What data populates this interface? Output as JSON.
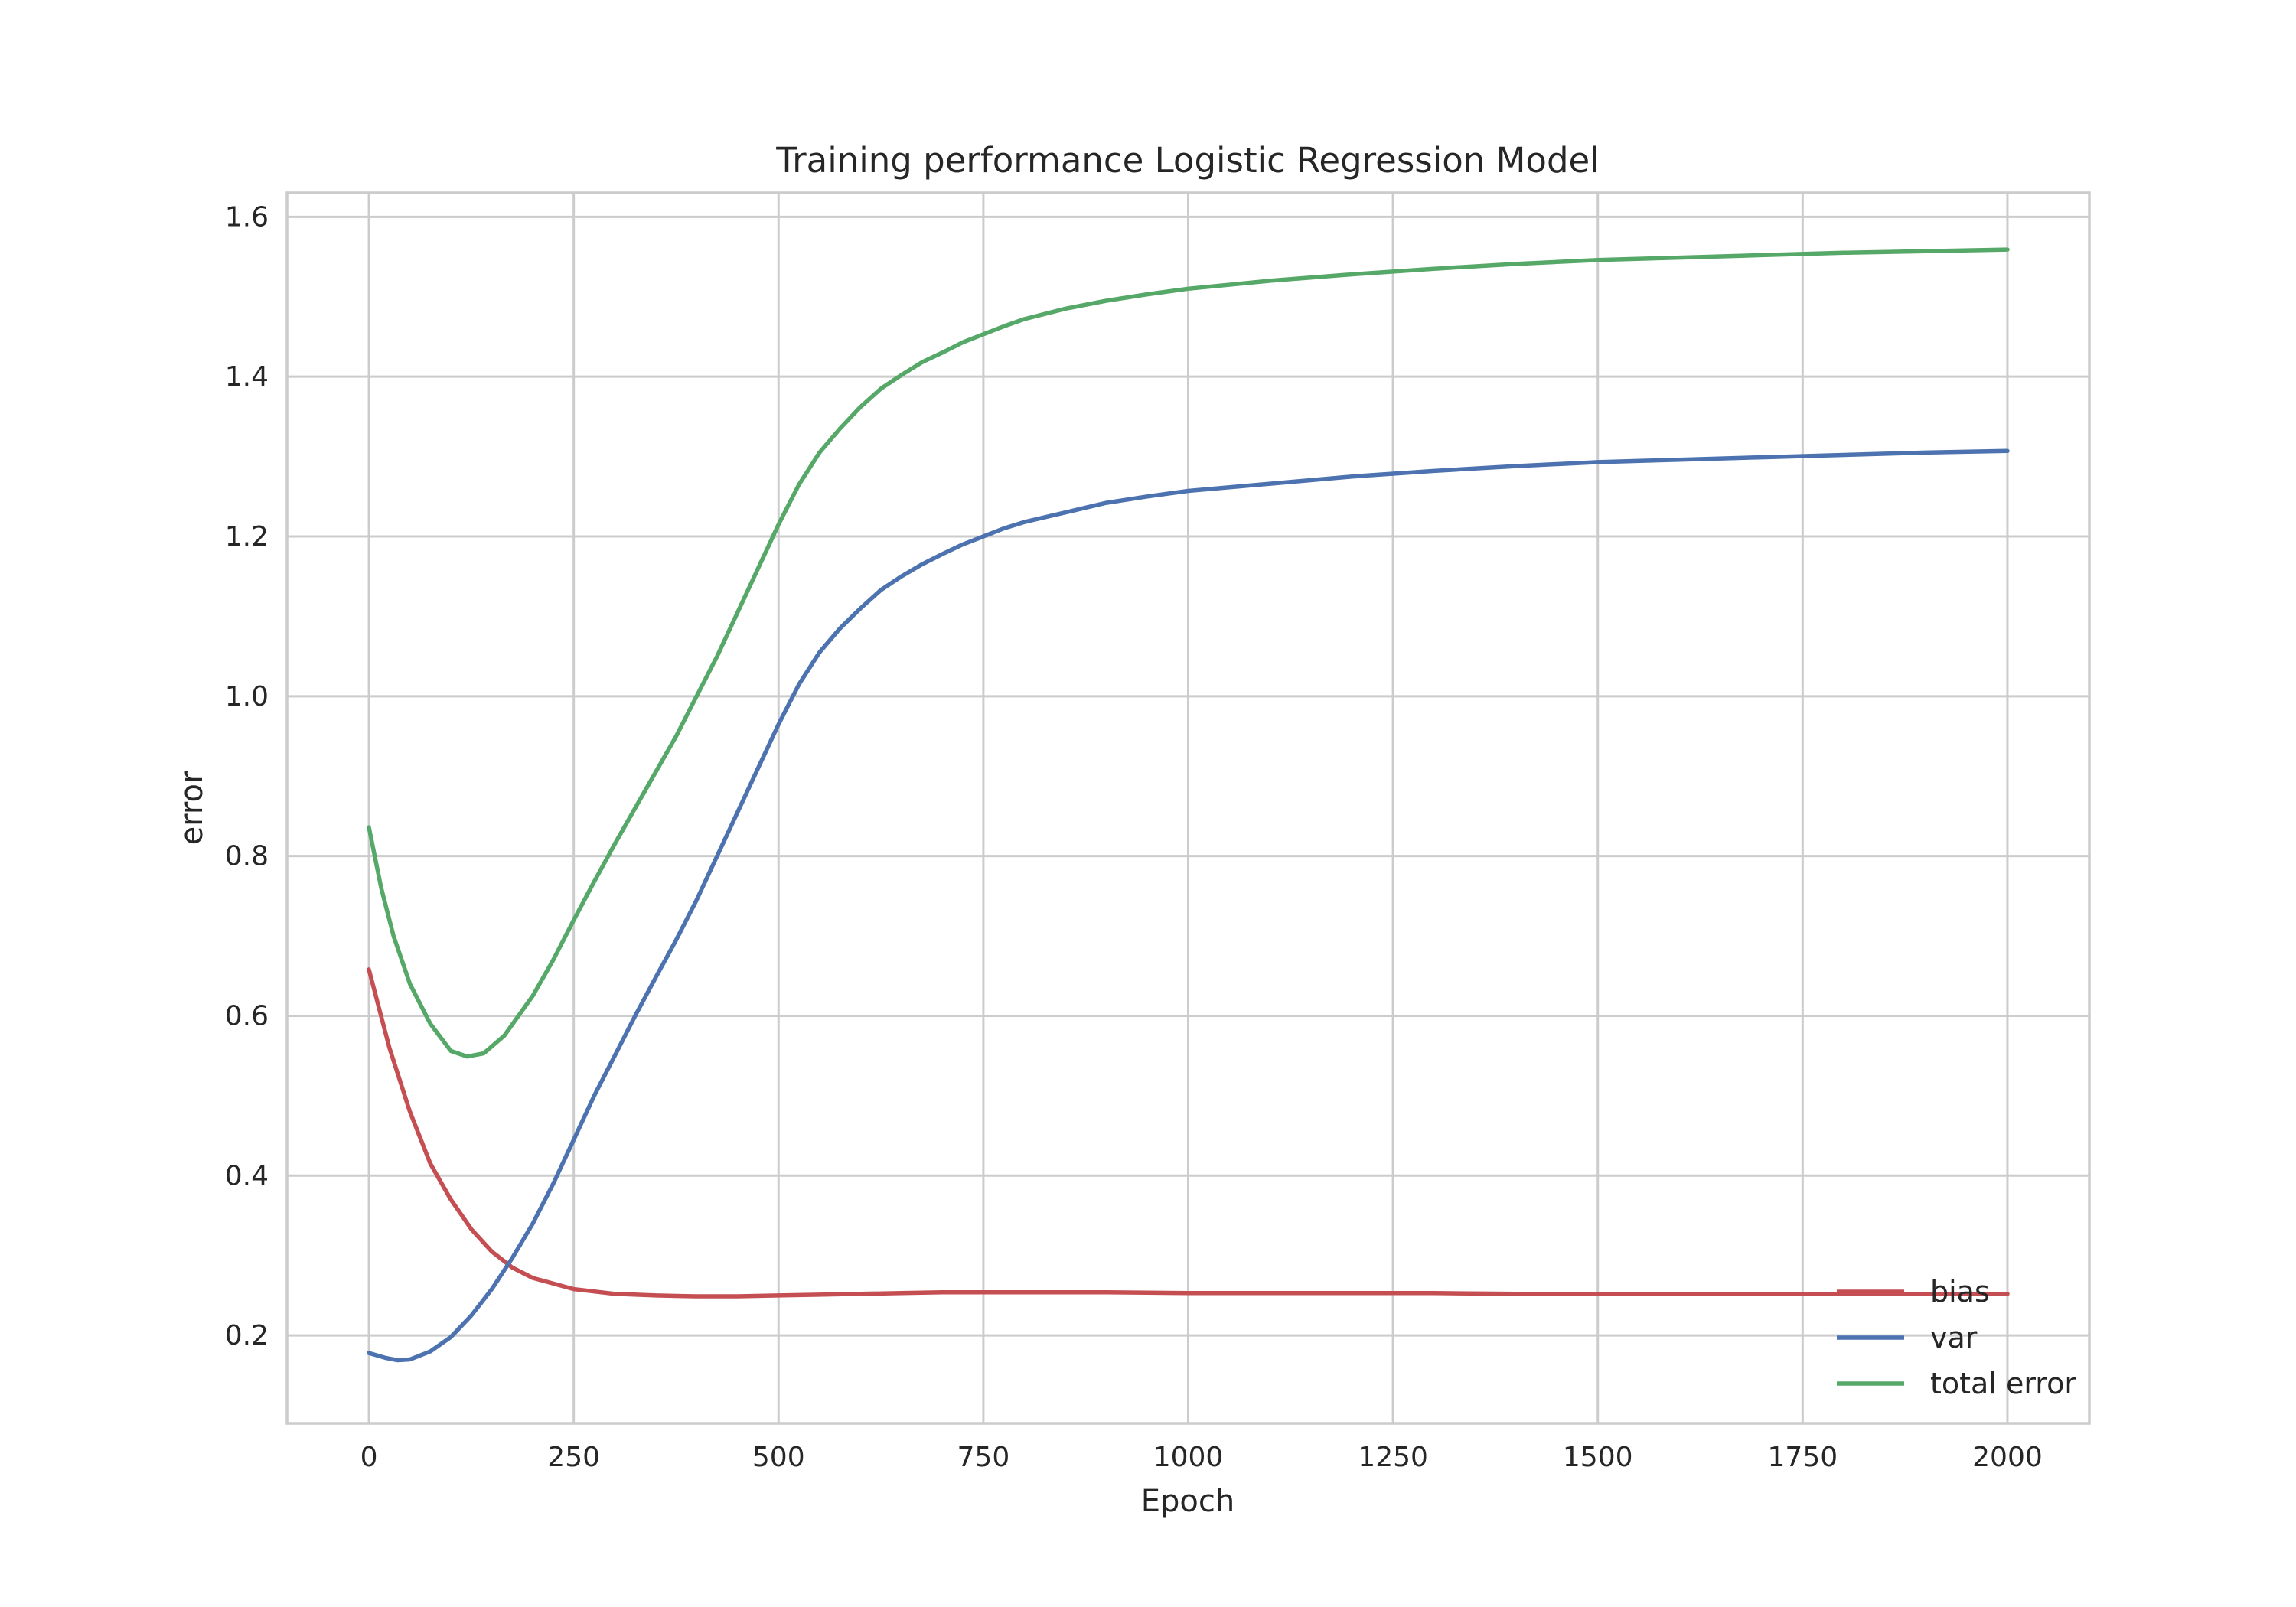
{
  "chart_data": {
    "type": "line",
    "title": "Training performance Logistic Regression Model",
    "xlabel": "Epoch",
    "ylabel": "error",
    "xlim": [
      -100,
      2100
    ],
    "ylim": [
      0.09,
      1.63
    ],
    "x_ticks": [
      0,
      250,
      500,
      750,
      1000,
      1250,
      1500,
      1750,
      2000
    ],
    "y_ticks": [
      0.2,
      0.4,
      0.6,
      0.8,
      1.0,
      1.2,
      1.4,
      1.6
    ],
    "grid": true,
    "legend_position": "lower-right",
    "series": [
      {
        "name": "bias",
        "color": "#c44e52",
        "points": [
          [
            0,
            0.658
          ],
          [
            25,
            0.56
          ],
          [
            50,
            0.48
          ],
          [
            75,
            0.415
          ],
          [
            100,
            0.37
          ],
          [
            125,
            0.333
          ],
          [
            150,
            0.305
          ],
          [
            175,
            0.285
          ],
          [
            200,
            0.272
          ],
          [
            250,
            0.258
          ],
          [
            300,
            0.252
          ],
          [
            350,
            0.25
          ],
          [
            400,
            0.249
          ],
          [
            450,
            0.249
          ],
          [
            500,
            0.25
          ],
          [
            550,
            0.251
          ],
          [
            600,
            0.252
          ],
          [
            650,
            0.253
          ],
          [
            700,
            0.254
          ],
          [
            750,
            0.254
          ],
          [
            800,
            0.254
          ],
          [
            900,
            0.254
          ],
          [
            1000,
            0.253
          ],
          [
            1100,
            0.253
          ],
          [
            1200,
            0.253
          ],
          [
            1300,
            0.253
          ],
          [
            1400,
            0.252
          ],
          [
            1500,
            0.252
          ],
          [
            1600,
            0.252
          ],
          [
            1700,
            0.252
          ],
          [
            1800,
            0.252
          ],
          [
            1900,
            0.252
          ],
          [
            2000,
            0.252
          ]
        ]
      },
      {
        "name": "var",
        "color": "#4c72b0",
        "points": [
          [
            0,
            0.178
          ],
          [
            20,
            0.172
          ],
          [
            35,
            0.169
          ],
          [
            50,
            0.17
          ],
          [
            75,
            0.18
          ],
          [
            100,
            0.198
          ],
          [
            125,
            0.225
          ],
          [
            150,
            0.258
          ],
          [
            175,
            0.297
          ],
          [
            200,
            0.34
          ],
          [
            225,
            0.39
          ],
          [
            250,
            0.445
          ],
          [
            275,
            0.5
          ],
          [
            300,
            0.55
          ],
          [
            325,
            0.6
          ],
          [
            350,
            0.648
          ],
          [
            375,
            0.695
          ],
          [
            400,
            0.745
          ],
          [
            425,
            0.8
          ],
          [
            450,
            0.855
          ],
          [
            475,
            0.91
          ],
          [
            500,
            0.965
          ],
          [
            525,
            1.015
          ],
          [
            550,
            1.055
          ],
          [
            575,
            1.085
          ],
          [
            600,
            1.11
          ],
          [
            625,
            1.133
          ],
          [
            650,
            1.15
          ],
          [
            675,
            1.165
          ],
          [
            700,
            1.178
          ],
          [
            725,
            1.19
          ],
          [
            750,
            1.2
          ],
          [
            775,
            1.21
          ],
          [
            800,
            1.218
          ],
          [
            850,
            1.23
          ],
          [
            900,
            1.242
          ],
          [
            950,
            1.25
          ],
          [
            1000,
            1.257
          ],
          [
            1100,
            1.266
          ],
          [
            1200,
            1.275
          ],
          [
            1300,
            1.282
          ],
          [
            1400,
            1.288
          ],
          [
            1500,
            1.293
          ],
          [
            1600,
            1.296
          ],
          [
            1700,
            1.299
          ],
          [
            1800,
            1.302
          ],
          [
            1900,
            1.305
          ],
          [
            2000,
            1.307
          ]
        ]
      },
      {
        "name": "total error",
        "color": "#55a868",
        "points": [
          [
            0,
            0.836
          ],
          [
            15,
            0.76
          ],
          [
            30,
            0.7
          ],
          [
            50,
            0.64
          ],
          [
            75,
            0.59
          ],
          [
            100,
            0.556
          ],
          [
            120,
            0.549
          ],
          [
            140,
            0.553
          ],
          [
            165,
            0.575
          ],
          [
            200,
            0.625
          ],
          [
            225,
            0.67
          ],
          [
            250,
            0.72
          ],
          [
            275,
            0.768
          ],
          [
            300,
            0.815
          ],
          [
            325,
            0.86
          ],
          [
            350,
            0.905
          ],
          [
            375,
            0.95
          ],
          [
            400,
            1.0
          ],
          [
            425,
            1.05
          ],
          [
            450,
            1.105
          ],
          [
            475,
            1.16
          ],
          [
            500,
            1.215
          ],
          [
            525,
            1.265
          ],
          [
            550,
            1.305
          ],
          [
            575,
            1.335
          ],
          [
            600,
            1.362
          ],
          [
            625,
            1.385
          ],
          [
            650,
            1.402
          ],
          [
            675,
            1.418
          ],
          [
            700,
            1.43
          ],
          [
            725,
            1.443
          ],
          [
            750,
            1.453
          ],
          [
            775,
            1.463
          ],
          [
            800,
            1.472
          ],
          [
            850,
            1.485
          ],
          [
            900,
            1.495
          ],
          [
            950,
            1.503
          ],
          [
            1000,
            1.51
          ],
          [
            1100,
            1.52
          ],
          [
            1200,
            1.528
          ],
          [
            1300,
            1.535
          ],
          [
            1400,
            1.541
          ],
          [
            1500,
            1.546
          ],
          [
            1600,
            1.549
          ],
          [
            1700,
            1.552
          ],
          [
            1800,
            1.555
          ],
          [
            1900,
            1.557
          ],
          [
            2000,
            1.559
          ]
        ]
      }
    ]
  }
}
